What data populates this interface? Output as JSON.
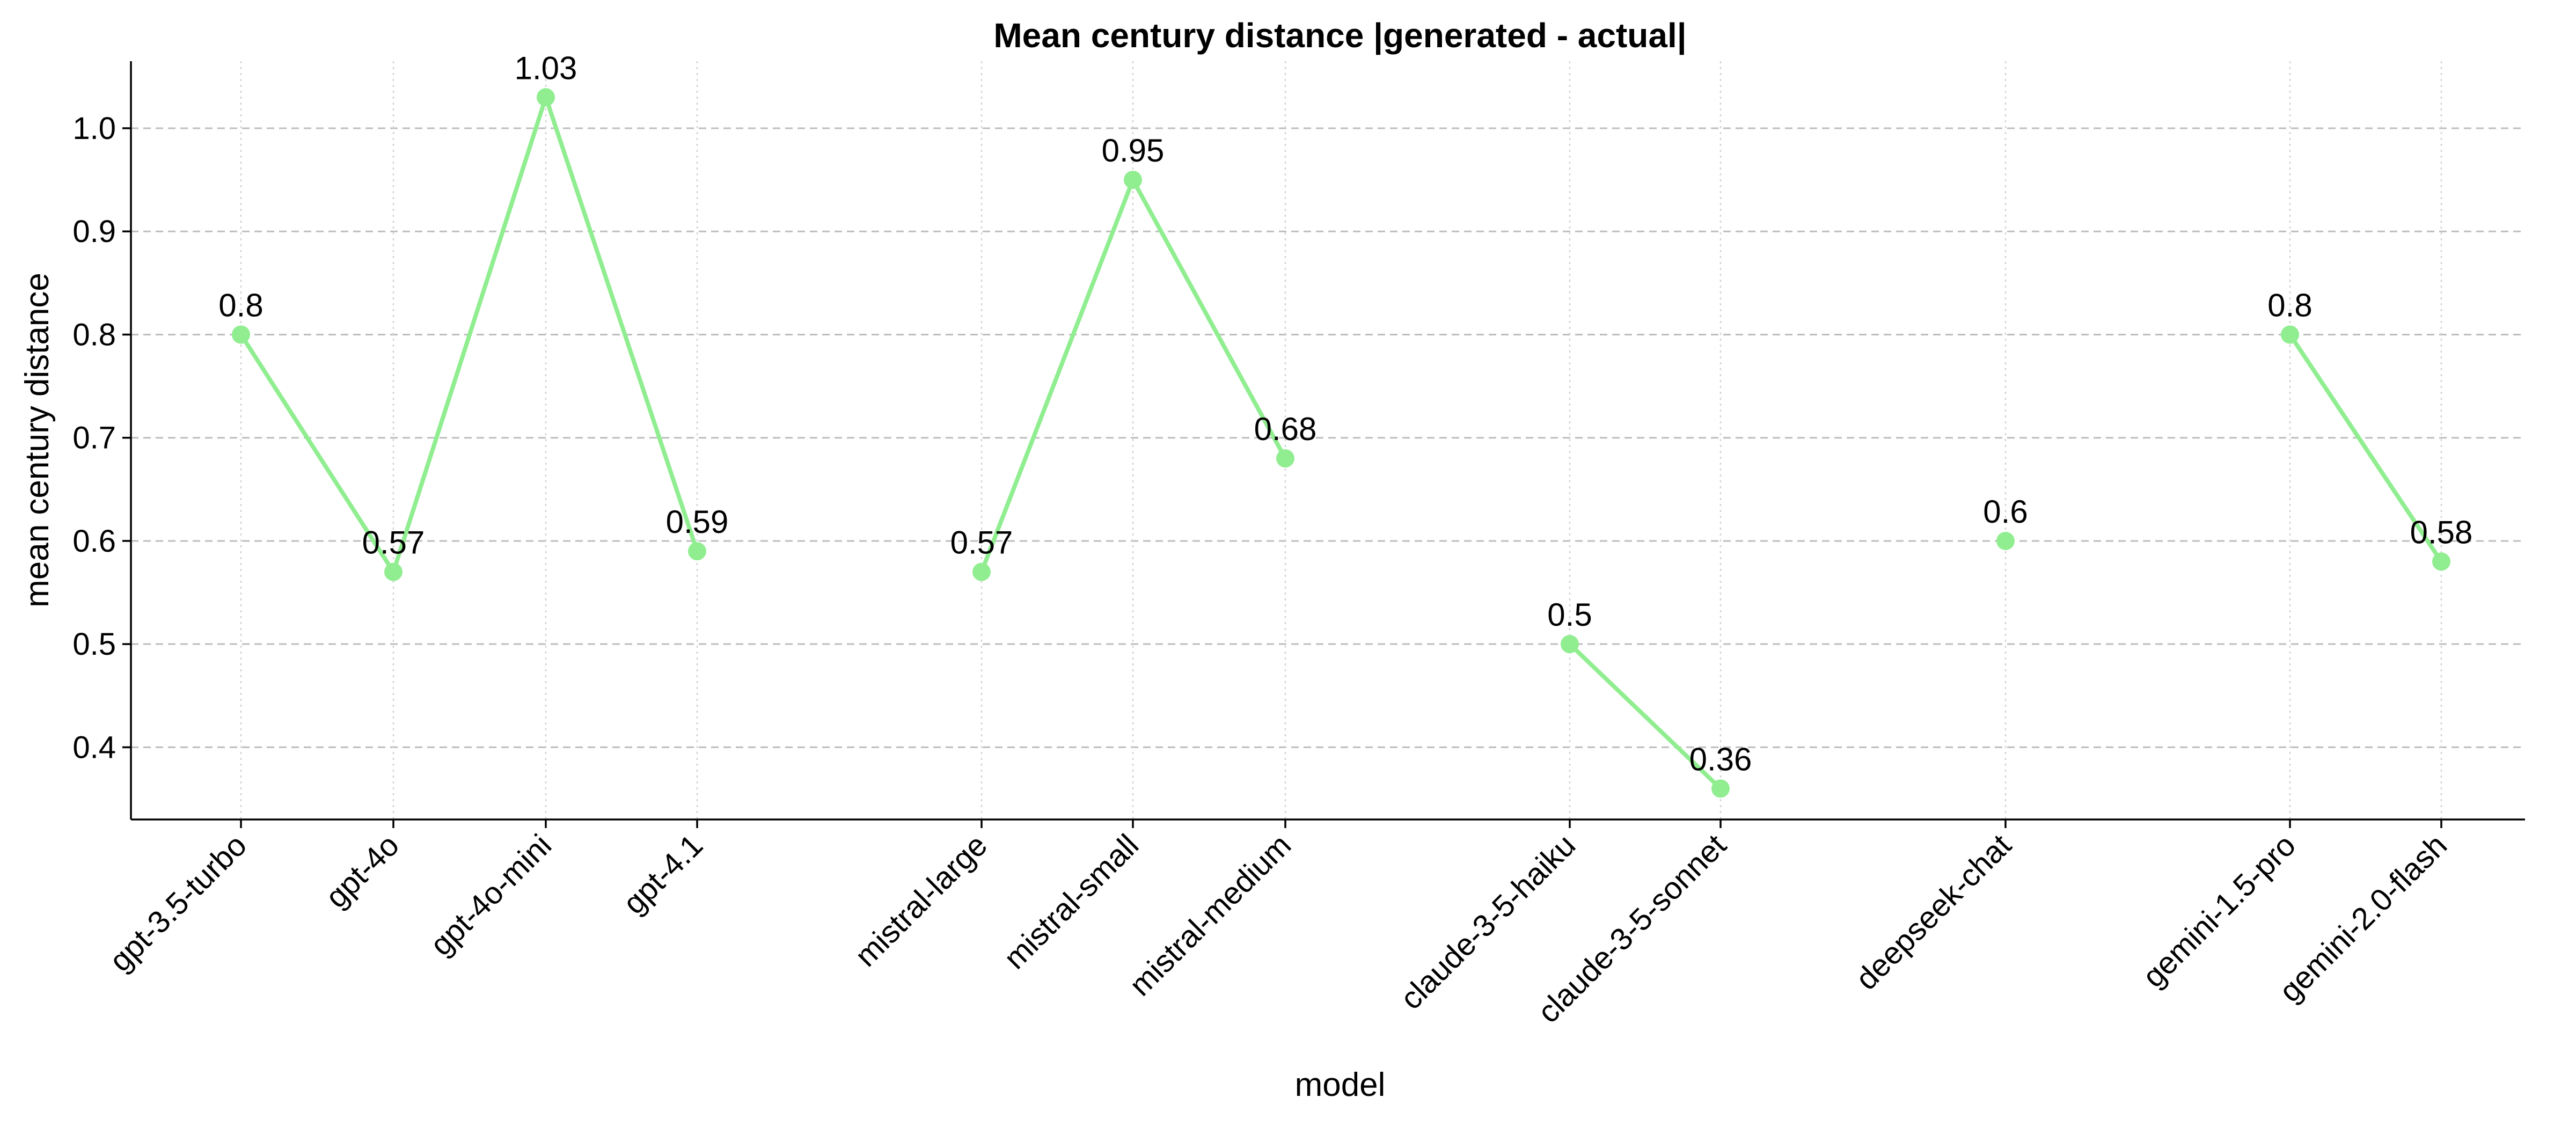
{
  "chart_data": {
    "type": "line",
    "title": "Mean century distance |generated - actual|",
    "xlabel": "model",
    "ylabel": "mean century distance",
    "ylim": [
      0.33,
      1.065
    ],
    "yticks": [
      "0.4",
      "0.5",
      "0.6",
      "0.7",
      "0.8",
      "0.9",
      "1.0"
    ],
    "categories": [
      "gpt-3.5-turbo",
      "gpt-4o",
      "gpt-4o-mini",
      "gpt-4.1",
      "mistral-large",
      "mistral-small",
      "mistral-medium",
      "claude-3-5-haiku",
      "claude-3-5-sonnet",
      "deepseek-chat",
      "gemini-1.5-pro",
      "gemini-2.0-flash"
    ],
    "groups": [
      {
        "categories": [
          "gpt-3.5-turbo",
          "gpt-4o",
          "gpt-4o-mini",
          "gpt-4.1"
        ],
        "values": [
          0.8,
          0.57,
          1.03,
          0.59
        ],
        "labels": [
          "0.8",
          "0.57",
          "1.03",
          "0.59"
        ]
      },
      {
        "categories": [
          "mistral-large",
          "mistral-small",
          "mistral-medium"
        ],
        "values": [
          0.57,
          0.95,
          0.68
        ],
        "labels": [
          "0.57",
          "0.95",
          "0.68"
        ]
      },
      {
        "categories": [
          "claude-3-5-haiku",
          "claude-3-5-sonnet"
        ],
        "values": [
          0.5,
          0.36
        ],
        "labels": [
          "0.5",
          "0.36"
        ]
      },
      {
        "categories": [
          "deepseek-chat"
        ],
        "values": [
          0.6
        ],
        "labels": [
          "0.6"
        ]
      },
      {
        "categories": [
          "gemini-1.5-pro",
          "gemini-2.0-flash"
        ],
        "values": [
          0.8,
          0.58
        ],
        "labels": [
          "0.8",
          "0.58"
        ]
      }
    ],
    "color": "#90ee90",
    "grid": {
      "y": "dashed",
      "x": "dotted"
    },
    "legend": "none"
  }
}
